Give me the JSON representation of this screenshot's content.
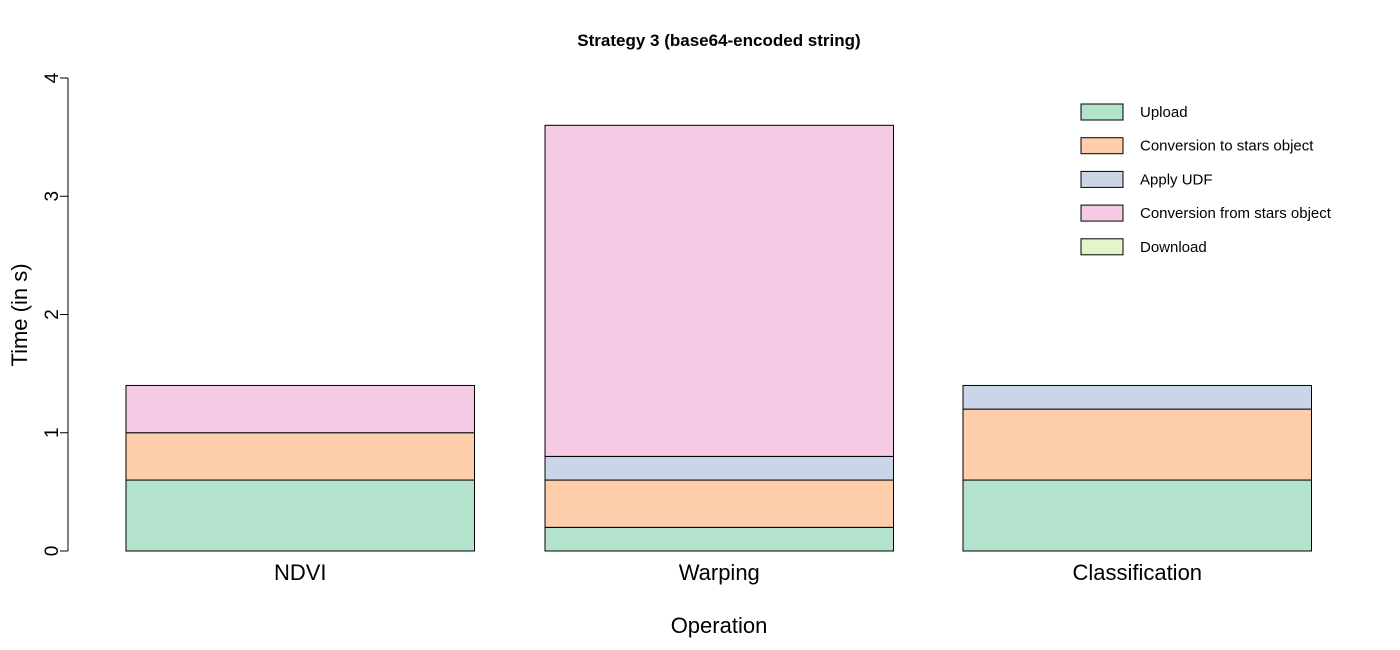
{
  "chart_data": {
    "type": "bar",
    "stacked": true,
    "title": "Strategy 3 (base64-encoded string)",
    "xlabel": "Operation",
    "ylabel": "Time (in s)",
    "ylim": [
      0,
      4
    ],
    "yticks": [
      "0",
      "1",
      "2",
      "3",
      "4"
    ],
    "grid": false,
    "legend_position": "top-right",
    "categories": [
      "NDVI",
      "Warping",
      "Classification"
    ],
    "series": [
      {
        "name": "Upload",
        "color": "#b3e2cd",
        "values": [
          0.6,
          0.2,
          0.6
        ]
      },
      {
        "name": "Conversion to stars object",
        "color": "#fdcdac",
        "values": [
          0.4,
          0.4,
          0.6
        ]
      },
      {
        "name": "Apply UDF",
        "color": "#cbd5e8",
        "values": [
          0.0,
          0.2,
          0.2
        ]
      },
      {
        "name": "Conversion from stars object",
        "color": "#f4cae4",
        "values": [
          0.4,
          2.8,
          0.0
        ]
      },
      {
        "name": "Download",
        "color": "#e6f5c9",
        "values": [
          0.0,
          0.0,
          0.0
        ]
      }
    ]
  }
}
